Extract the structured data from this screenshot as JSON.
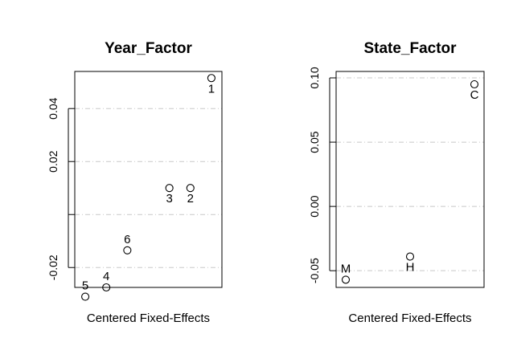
{
  "chart_data": [
    {
      "type": "scatter",
      "title": "Year_Factor",
      "xlabel": "Centered Fixed-Effects",
      "ylabel": "",
      "ylim": [
        -0.0275,
        0.054
      ],
      "yticks": [
        -0.02,
        0.0,
        0.02,
        0.04
      ],
      "ytick_labels": [
        "-0.02",
        "",
        "0.02",
        "0.04"
      ],
      "grid": "horizontal dashed at ticks",
      "points": [
        {
          "label": "1",
          "x": 7,
          "y": 0.0515
        },
        {
          "label": "2",
          "x": 6,
          "y": 0.01
        },
        {
          "label": "3",
          "x": 5,
          "y": 0.01
        },
        {
          "label": "4",
          "x": 2,
          "y": -0.0275
        },
        {
          "label": "5",
          "x": 1,
          "y": -0.031
        },
        {
          "label": "6",
          "x": 3,
          "y": -0.0135
        }
      ]
    },
    {
      "type": "scatter",
      "title": "State_Factor",
      "xlabel": "Centered Fixed-Effects",
      "ylabel": "",
      "ylim": [
        -0.063,
        0.105
      ],
      "yticks": [
        -0.05,
        0.0,
        0.05,
        0.1
      ],
      "ytick_labels": [
        "-0.05",
        "0.00",
        "0.05",
        "0.10"
      ],
      "grid": "horizontal dashed at ticks",
      "points": [
        {
          "label": "M",
          "x": 1,
          "y": -0.057
        },
        {
          "label": "H",
          "x": 2,
          "y": -0.039
        },
        {
          "label": "C",
          "x": 3,
          "y": 0.095
        }
      ]
    }
  ]
}
